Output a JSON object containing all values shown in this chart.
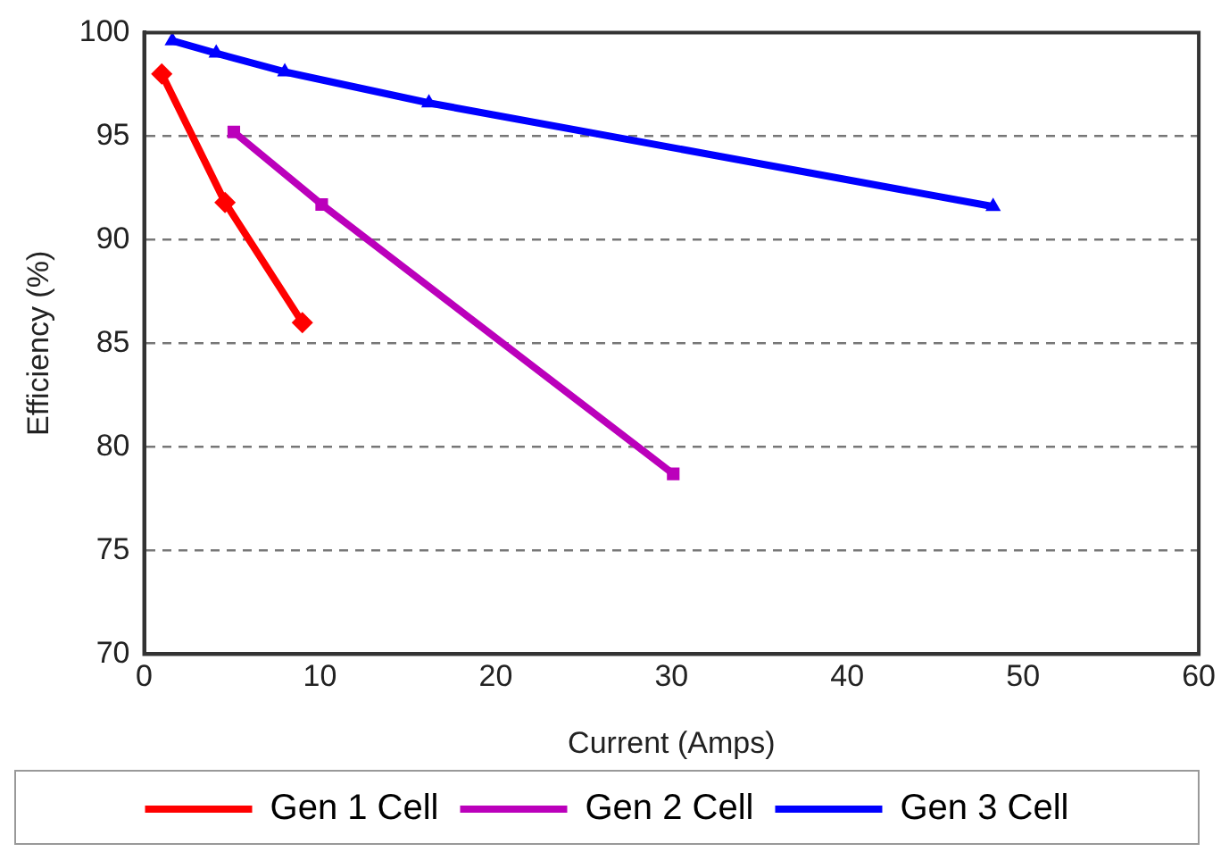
{
  "chart_data": {
    "type": "line",
    "xlabel": "Current (Amps)",
    "ylabel": "Efficiency (%)",
    "xlim": [
      0,
      60
    ],
    "xticks": [
      0,
      10,
      20,
      30,
      40,
      50,
      60
    ],
    "ylim": [
      70,
      100
    ],
    "yticks": [
      70,
      75,
      80,
      85,
      90,
      95,
      100
    ],
    "grid": "y",
    "legend": "bottom",
    "line_style": "solid",
    "series": [
      {
        "name": "Gen 1 Cell",
        "color": "#ff0000",
        "marker": "diamond",
        "x": [
          1,
          4.6,
          9.0
        ],
        "values": [
          98.0,
          91.8,
          86.0
        ]
      },
      {
        "name": "Gen 2 Cell",
        "color": "#bb00bb",
        "marker": "square",
        "x": [
          5.1,
          10.1,
          30.1
        ],
        "values": [
          95.2,
          91.7,
          78.7
        ]
      },
      {
        "name": "Gen 3 Cell",
        "color": "#0000ff",
        "marker": "triangle",
        "x": [
          1.6,
          4.1,
          8.0,
          16.2,
          48.3
        ],
        "values": [
          99.6,
          99.0,
          98.1,
          96.6,
          91.6
        ]
      }
    ]
  }
}
